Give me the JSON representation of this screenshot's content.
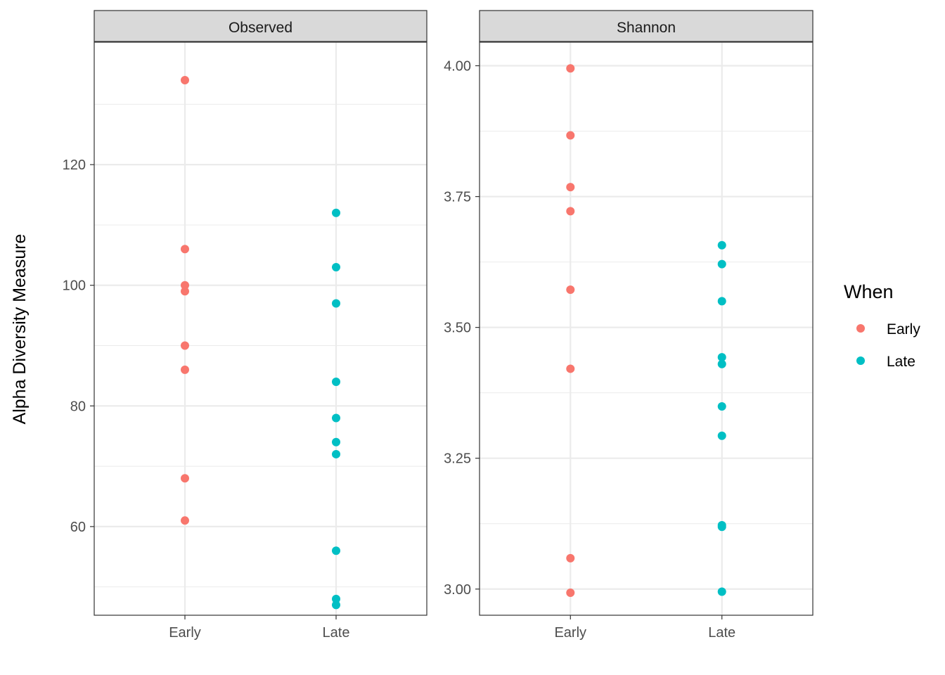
{
  "chart_data": {
    "type": "scatter",
    "ylabel": "Alpha Diversity Measure",
    "categories": [
      "Early",
      "Late"
    ],
    "legend": {
      "title": "When",
      "placement": "right",
      "entries": [
        {
          "label": "Early",
          "color": "#F8766D"
        },
        {
          "label": "Late",
          "color": "#00BFC4"
        }
      ]
    },
    "grid": true,
    "panels": [
      {
        "strip": "Observed",
        "ylim": [
          45.3,
          140.3
        ],
        "yticks": [
          60,
          80,
          100,
          120
        ],
        "ytick_labels": [
          "60",
          "80",
          "100",
          "120"
        ],
        "minor_breaks": [
          50,
          70,
          90,
          110,
          130
        ],
        "series": [
          {
            "name": "Early",
            "category": "Early",
            "values": [
              134,
              106,
              100,
              99,
              90,
              86,
              68,
              61
            ]
          },
          {
            "name": "Late",
            "category": "Late",
            "values": [
              112,
              103,
              97,
              84,
              78,
              74,
              72,
              56,
              48,
              47
            ]
          }
        ]
      },
      {
        "strip": "Shannon",
        "ylim": [
          2.95,
          4.045
        ],
        "yticks": [
          3.0,
          3.25,
          3.5,
          3.75,
          4.0
        ],
        "ytick_labels": [
          "3.00",
          "3.25",
          "3.50",
          "3.75",
          "4.00"
        ],
        "minor_breaks": [
          3.125,
          3.375,
          3.625,
          3.875
        ],
        "series": [
          {
            "name": "Early",
            "category": "Early",
            "values": [
              3.995,
              3.867,
              3.768,
              3.722,
              3.572,
              3.421,
              3.059,
              2.993
            ]
          },
          {
            "name": "Late",
            "category": "Late",
            "values": [
              3.657,
              3.621,
              3.55,
              3.443,
              3.43,
              3.349,
              3.293,
              3.122,
              3.119,
              2.995
            ]
          }
        ]
      }
    ]
  }
}
